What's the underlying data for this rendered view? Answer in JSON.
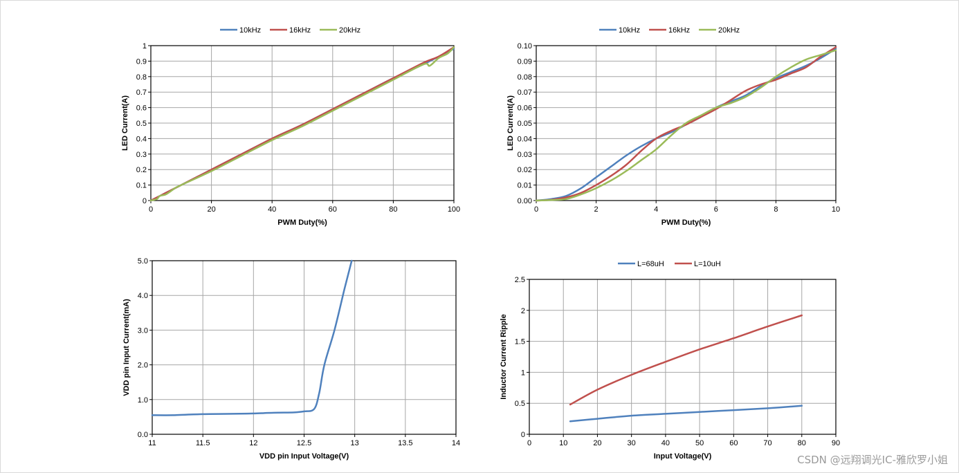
{
  "watermark": "CSDN @远翔调光IC-雅欣罗小姐",
  "chart_data": [
    {
      "type": "line",
      "title": "",
      "xlabel": "PWM Duty(%)",
      "ylabel": "LED Current(A)",
      "xlim": [
        0,
        100
      ],
      "ylim": [
        0,
        1
      ],
      "xticks": [
        0,
        20,
        40,
        60,
        80,
        100
      ],
      "xtick_labels": [
        "0",
        "20",
        "40",
        "60",
        "80",
        "100"
      ],
      "yticks": [
        0,
        0.1,
        0.2,
        0.3,
        0.4,
        0.5,
        0.6,
        0.7,
        0.8,
        0.9,
        1
      ],
      "ytick_labels": [
        "0",
        "0.1",
        "0.2",
        "0.3",
        "0.4",
        "0.5",
        "0.6",
        "0.7",
        "0.8",
        "0.9",
        "1"
      ],
      "xgrid": [
        20,
        40,
        60,
        80
      ],
      "ygrid": [
        0.1,
        0.2,
        0.3,
        0.4,
        0.5,
        0.6,
        0.7,
        0.8,
        0.9
      ],
      "legend_position": "top",
      "series": [
        {
          "name": "10kHz",
          "color": "#4f81bd",
          "x": [
            0,
            5,
            10,
            20,
            30,
            40,
            50,
            60,
            70,
            80,
            90,
            95,
            100
          ],
          "y": [
            0,
            0.05,
            0.1,
            0.2,
            0.3,
            0.4,
            0.49,
            0.59,
            0.69,
            0.79,
            0.88,
            0.93,
            0.98
          ]
        },
        {
          "name": "16kHz",
          "color": "#c0504d",
          "x": [
            0,
            5,
            10,
            20,
            30,
            40,
            50,
            60,
            70,
            80,
            90,
            95,
            100
          ],
          "y": [
            0,
            0.05,
            0.1,
            0.2,
            0.3,
            0.4,
            0.49,
            0.59,
            0.69,
            0.79,
            0.89,
            0.93,
            0.99
          ]
        },
        {
          "name": "20kHz",
          "color": "#9bbb59",
          "x": [
            0,
            2,
            3,
            5,
            8,
            10,
            20,
            30,
            40,
            50,
            60,
            70,
            80,
            90,
            92,
            95,
            98,
            100
          ],
          "y": [
            0,
            0.01,
            0.03,
            0.04,
            0.08,
            0.1,
            0.19,
            0.29,
            0.39,
            0.48,
            0.58,
            0.68,
            0.78,
            0.88,
            0.87,
            0.92,
            0.95,
            0.99
          ]
        }
      ]
    },
    {
      "type": "line",
      "title": "",
      "xlabel": "PWM Duty(%)",
      "ylabel": "LED Current(A)",
      "xlim": [
        0,
        10
      ],
      "ylim": [
        0,
        0.1
      ],
      "xticks": [
        0,
        2,
        4,
        6,
        8,
        10
      ],
      "xtick_labels": [
        "0",
        "2",
        "4",
        "6",
        "8",
        "10"
      ],
      "yticks": [
        0,
        0.01,
        0.02,
        0.03,
        0.04,
        0.05,
        0.06,
        0.07,
        0.08,
        0.09,
        0.1
      ],
      "ytick_labels": [
        "0.00",
        "0.01",
        "0.02",
        "0.03",
        "0.04",
        "0.05",
        "0.06",
        "0.07",
        "0.08",
        "0.09",
        "0.10"
      ],
      "xgrid": [
        2,
        4,
        6,
        8
      ],
      "ygrid": [
        0.01,
        0.02,
        0.03,
        0.04,
        0.05,
        0.06,
        0.07,
        0.08,
        0.09
      ],
      "legend_position": "top",
      "series": [
        {
          "name": "10kHz",
          "color": "#4f81bd",
          "x": [
            0,
            0.5,
            1,
            1.5,
            2,
            2.5,
            3,
            3.5,
            4,
            4.5,
            5,
            5.5,
            6,
            6.5,
            7,
            7.5,
            8,
            8.5,
            9,
            9.5,
            10
          ],
          "y": [
            0,
            0.001,
            0.003,
            0.008,
            0.015,
            0.022,
            0.029,
            0.035,
            0.04,
            0.044,
            0.049,
            0.054,
            0.06,
            0.064,
            0.068,
            0.074,
            0.079,
            0.083,
            0.087,
            0.092,
            0.098
          ]
        },
        {
          "name": "16kHz",
          "color": "#c0504d",
          "x": [
            0,
            0.5,
            1,
            1.5,
            2,
            2.5,
            3,
            3.5,
            4,
            4.5,
            5,
            5.5,
            6,
            6.5,
            7,
            7.5,
            8,
            8.5,
            9,
            9.5,
            10
          ],
          "y": [
            0,
            0.0005,
            0.002,
            0.005,
            0.01,
            0.016,
            0.023,
            0.032,
            0.04,
            0.045,
            0.049,
            0.054,
            0.059,
            0.065,
            0.071,
            0.075,
            0.078,
            0.082,
            0.086,
            0.093,
            0.099
          ]
        },
        {
          "name": "20kHz",
          "color": "#9bbb59",
          "x": [
            0,
            0.5,
            1,
            1.5,
            2,
            2.5,
            3,
            3.5,
            4,
            4.5,
            5,
            5.5,
            6,
            6.5,
            7,
            7.5,
            8,
            8.5,
            9,
            9.5,
            10
          ],
          "y": [
            0,
            0.0003,
            0.001,
            0.004,
            0.008,
            0.013,
            0.019,
            0.026,
            0.033,
            0.042,
            0.05,
            0.055,
            0.06,
            0.063,
            0.067,
            0.073,
            0.08,
            0.086,
            0.091,
            0.094,
            0.097
          ]
        }
      ]
    },
    {
      "type": "line",
      "title": "",
      "xlabel": "VDD pin Input Voltage(V)",
      "ylabel": "VDD pin Input Current(mA)",
      "xlim": [
        11,
        14
      ],
      "ylim": [
        0,
        5
      ],
      "xticks": [
        11,
        11.5,
        12,
        12.5,
        13,
        13.5,
        14
      ],
      "xtick_labels": [
        "11",
        "11.5",
        "12",
        "12.5",
        "13",
        "13.5",
        "14"
      ],
      "yticks": [
        0,
        1,
        2,
        3,
        4,
        5
      ],
      "ytick_labels": [
        "0.0",
        "1.0",
        "2.0",
        "3.0",
        "4.0",
        "5.0"
      ],
      "xgrid": [
        11.5,
        12,
        12.5,
        13,
        13.5
      ],
      "ygrid": [
        1,
        2,
        3,
        4
      ],
      "legend_position": "none",
      "series": [
        {
          "name": "",
          "color": "#4f81bd",
          "x": [
            11,
            11.2,
            11.5,
            11.8,
            12,
            12.2,
            12.4,
            12.5,
            12.6,
            12.65,
            12.7,
            12.8,
            12.9,
            12.97
          ],
          "y": [
            0.55,
            0.55,
            0.58,
            0.59,
            0.6,
            0.62,
            0.63,
            0.66,
            0.73,
            1.2,
            2.0,
            3.0,
            4.2,
            5.0
          ]
        }
      ]
    },
    {
      "type": "line",
      "title": "",
      "xlabel": "Input Voltage(V)",
      "ylabel": "Inductor Current Ripple",
      "xlim": [
        0,
        90
      ],
      "ylim": [
        0,
        2.5
      ],
      "xticks": [
        0,
        10,
        20,
        30,
        40,
        50,
        60,
        70,
        80,
        90
      ],
      "xtick_labels": [
        "0",
        "10",
        "20",
        "30",
        "40",
        "50",
        "60",
        "70",
        "80",
        "90"
      ],
      "yticks": [
        0,
        0.5,
        1,
        1.5,
        2,
        2.5
      ],
      "ytick_labels": [
        "0",
        "0.5",
        "1",
        "1.5",
        "2",
        "2.5"
      ],
      "xgrid": [
        10,
        20,
        30,
        40,
        50,
        60,
        70,
        80,
        90
      ],
      "ygrid": [
        0.5,
        1,
        1.5,
        2,
        2.5
      ],
      "legend_position": "top",
      "series": [
        {
          "name": "L=68uH",
          "color": "#4f81bd",
          "x": [
            12,
            20,
            30,
            40,
            50,
            60,
            70,
            80
          ],
          "y": [
            0.21,
            0.25,
            0.3,
            0.33,
            0.36,
            0.39,
            0.42,
            0.46
          ]
        },
        {
          "name": "L=10uH",
          "color": "#c0504d",
          "x": [
            12,
            20,
            30,
            40,
            50,
            60,
            70,
            80
          ],
          "y": [
            0.48,
            0.72,
            0.96,
            1.17,
            1.37,
            1.55,
            1.74,
            1.92
          ]
        }
      ]
    }
  ]
}
